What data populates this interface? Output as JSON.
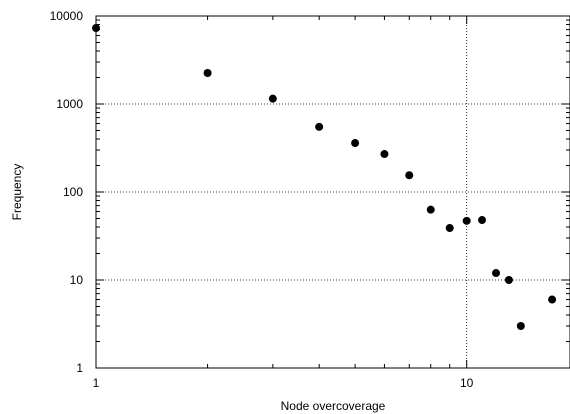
{
  "chart_data": {
    "type": "scatter",
    "title": "",
    "xlabel": "Node overcoverage",
    "ylabel": "Frequency",
    "xscale": "log",
    "yscale": "log",
    "xlim": [
      1,
      19
    ],
    "ylim": [
      1,
      10000
    ],
    "grid": "dotted, at major decades",
    "x_tick_labels": [
      "1",
      "10"
    ],
    "y_tick_labels": [
      "1",
      "10",
      "100",
      "1000",
      "10000"
    ],
    "series": [
      {
        "marker_color": "#000000",
        "points": [
          {
            "x": 1,
            "y": 7300
          },
          {
            "x": 2,
            "y": 2250
          },
          {
            "x": 3,
            "y": 1150
          },
          {
            "x": 4,
            "y": 550
          },
          {
            "x": 5,
            "y": 360
          },
          {
            "x": 6,
            "y": 270
          },
          {
            "x": 7,
            "y": 155
          },
          {
            "x": 8,
            "y": 63
          },
          {
            "x": 9,
            "y": 39
          },
          {
            "x": 10,
            "y": 47
          },
          {
            "x": 11,
            "y": 48
          },
          {
            "x": 12,
            "y": 12
          },
          {
            "x": 13,
            "y": 10
          },
          {
            "x": 14,
            "y": 3
          },
          {
            "x": 17,
            "y": 6
          }
        ]
      }
    ]
  }
}
